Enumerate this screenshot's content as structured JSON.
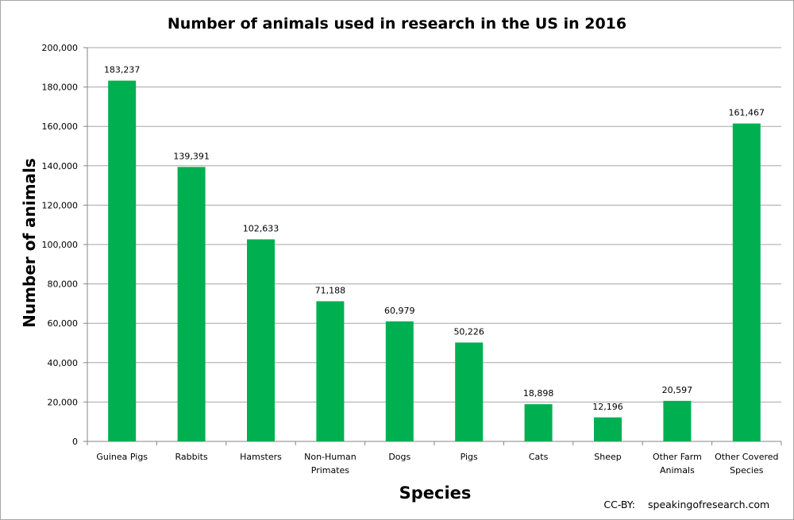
{
  "chart_data": {
    "type": "bar",
    "title": "Number of animals used in research in the US in 2016",
    "xlabel": "Species",
    "ylabel": "Number of animals",
    "categories": [
      [
        "Guinea Pigs"
      ],
      [
        "Rabbits"
      ],
      [
        "Hamsters"
      ],
      [
        "Non-Human",
        "Primates"
      ],
      [
        "Dogs"
      ],
      [
        "Pigs"
      ],
      [
        "Cats"
      ],
      [
        "Sheep"
      ],
      [
        "Other Farm",
        "Animals"
      ],
      [
        "Other Covered",
        "Species"
      ]
    ],
    "values": [
      183237,
      139391,
      102633,
      71188,
      60979,
      50226,
      18898,
      12196,
      20597,
      161467
    ],
    "data_labels": [
      "183,237",
      "139,391",
      "102,633",
      "71,188",
      "60,979",
      "50,226",
      "18,898",
      "12,196",
      "20,597",
      "161,467"
    ],
    "ylim": [
      0,
      200000
    ],
    "yticks": [
      "0",
      "20,000",
      "40,000",
      "60,000",
      "80,000",
      "100,000",
      "120,000",
      "140,000",
      "160,000",
      "180,000",
      "200,000"
    ],
    "grid": true,
    "legend": "none",
    "bar_color": "#00b050",
    "credit": {
      "label": "CC-BY:",
      "source": "speakingofresearch.com"
    }
  }
}
